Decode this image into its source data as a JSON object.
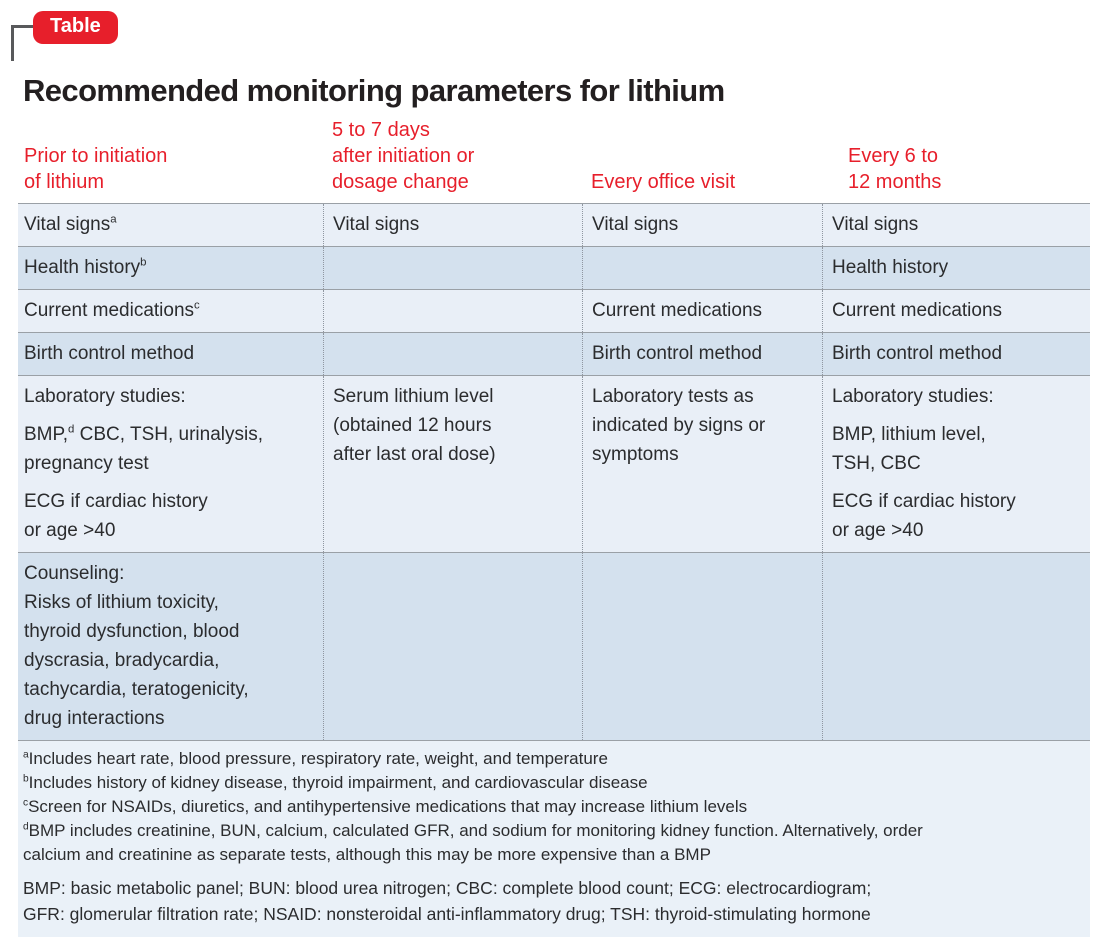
{
  "badge": {
    "label": "Table"
  },
  "title": "Recommended monitoring parameters for lithium",
  "colors": {
    "accent_red": "#e71f2b",
    "row_light": "#e9eff7",
    "row_dark": "#d4e1ee",
    "footer_bg": "#eaf1f8",
    "rule_gray": "#9aa0a6"
  },
  "table": {
    "headers": [
      {
        "label": "Prior to initiation\nof lithium"
      },
      {
        "label": "5 to 7 days\nafter initiation or\ndosage change"
      },
      {
        "label": "Every office visit"
      },
      {
        "label": "Every 6 to\n12 months"
      }
    ],
    "rows": {
      "vital_signs": {
        "c1": "Vital signs",
        "c1_sup": "a",
        "c2": "Vital signs",
        "c3": "Vital signs",
        "c4": "Vital signs"
      },
      "health_history": {
        "c1": "Health history",
        "c1_sup": "b",
        "c2": "",
        "c3": "",
        "c4": "Health history"
      },
      "current_medications": {
        "c1": "Current medications",
        "c1_sup": "c",
        "c2": "",
        "c3": "Current medications",
        "c4": "Current medications"
      },
      "birth_control": {
        "c1": "Birth control method",
        "c2": "",
        "c3": "Birth control method",
        "c4": "Birth control method"
      },
      "laboratory": {
        "c1_p1": "Laboratory studies:",
        "c1_p2_pre": "BMP,",
        "c1_p2_sup": "d",
        "c1_p2_post": " CBC, TSH, urinalysis,\npregnancy test",
        "c1_p3": "ECG if cardiac history\nor age >40",
        "c2": "Serum lithium level\n(obtained 12 hours\nafter last oral dose)",
        "c3": "Laboratory tests as\nindicated by signs or\nsymptoms",
        "c4_p1": "Laboratory studies:",
        "c4_p2": "BMP, lithium level,\nTSH, CBC",
        "c4_p3": "ECG if cardiac history\nor age >40"
      },
      "counseling": {
        "c1": "Counseling:\nRisks of lithium toxicity,\nthyroid dysfunction, blood\ndyscrasia, bradycardia,\ntachycardia, teratogenicity,\ndrug interactions",
        "c2": "",
        "c3": "",
        "c4": ""
      }
    }
  },
  "footnotes": [
    {
      "sup": "a",
      "text": "Includes heart rate, blood pressure, respiratory rate, weight, and temperature"
    },
    {
      "sup": "b",
      "text": "Includes history of kidney disease, thyroid impairment, and cardiovascular disease"
    },
    {
      "sup": "c",
      "text": "Screen for NSAIDs, diuretics, and antihypertensive medications that may increase lithium levels"
    },
    {
      "sup": "d",
      "text": "BMP includes creatinine, BUN, calcium, calculated GFR, and sodium for monitoring kidney function. Alternatively, order\ncalcium and creatinine as separate tests, although this may be more expensive than a BMP"
    }
  ],
  "abbreviations": "BMP: basic metabolic panel; BUN: blood urea nitrogen; CBC: complete blood count; ECG: electrocardiogram;\nGFR: glomerular filtration rate; NSAID: nonsteroidal anti-inflammatory drug; TSH: thyroid-stimulating hormone"
}
